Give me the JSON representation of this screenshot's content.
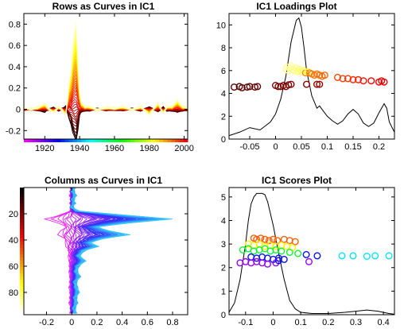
{
  "chart_data": [
    {
      "id": "rows-curves",
      "type": "line",
      "title": "Rows as Curves in IC1",
      "xlabel": "",
      "ylabel": "",
      "xlim": [
        1908,
        2002
      ],
      "ylim": [
        -0.28,
        0.9
      ],
      "x_ticks": [
        1920,
        1940,
        1960,
        1980,
        2000
      ],
      "y_ticks": [
        -0.2,
        0,
        0.2,
        0.4,
        0.6,
        0.8
      ],
      "colorbar": "below x-axis, rainbow (magenta to red) spanning the years",
      "colormap": "hot (dark red/black to yellow/white)",
      "n_curves": 45,
      "peak": {
        "x": 1938,
        "y": 0.85
      },
      "curve_shape": [
        [
          1908,
          0.02
        ],
        [
          1912,
          0.0
        ],
        [
          1916,
          0.02
        ],
        [
          1920,
          0.06
        ],
        [
          1922,
          0.01
        ],
        [
          1925,
          -0.04
        ],
        [
          1928,
          0.03
        ],
        [
          1930,
          -0.01
        ],
        [
          1932,
          -0.07
        ],
        [
          1934,
          0.28
        ],
        [
          1935,
          0.38
        ],
        [
          1936,
          0.62
        ],
        [
          1937,
          0.76
        ],
        [
          1938,
          0.85
        ],
        [
          1939,
          0.55
        ],
        [
          1940,
          0.18
        ],
        [
          1941,
          0.07
        ],
        [
          1943,
          0.03
        ],
        [
          1946,
          0.03
        ],
        [
          1950,
          -0.01
        ],
        [
          1955,
          0.02
        ],
        [
          1960,
          0.01
        ],
        [
          1965,
          0.03
        ],
        [
          1970,
          -0.01
        ],
        [
          1975,
          0.03
        ],
        [
          1980,
          -0.06
        ],
        [
          1985,
          0.07
        ],
        [
          1988,
          -0.05
        ],
        [
          1990,
          0.03
        ],
        [
          1993,
          0.03
        ],
        [
          1996,
          0.09
        ],
        [
          1999,
          0.03
        ],
        [
          2002,
          0.02
        ]
      ]
    },
    {
      "id": "ic1-loadings",
      "type": "scatter",
      "title": "IC1 Loadings Plot",
      "xlabel": "",
      "ylabel": "",
      "xlim": [
        -0.09,
        0.23
      ],
      "ylim": [
        0,
        11
      ],
      "x_ticks": [
        -0.05,
        0,
        0.05,
        0.1,
        0.15,
        0.2
      ],
      "y_ticks": [
        0,
        2,
        4,
        6,
        8,
        10
      ],
      "grid": false,
      "colormap": "hot",
      "density_curve": [
        [
          -0.09,
          0.3
        ],
        [
          -0.07,
          0.6
        ],
        [
          -0.05,
          1.0
        ],
        [
          -0.03,
          0.8
        ],
        [
          -0.01,
          1.5
        ],
        [
          0.0,
          2.2
        ],
        [
          0.01,
          3.5
        ],
        [
          0.02,
          5.5
        ],
        [
          0.03,
          8.5
        ],
        [
          0.04,
          10.4
        ],
        [
          0.045,
          10.6
        ],
        [
          0.05,
          9.8
        ],
        [
          0.055,
          8.0
        ],
        [
          0.06,
          6.0
        ],
        [
          0.07,
          3.8
        ],
        [
          0.08,
          2.7
        ],
        [
          0.085,
          2.9
        ],
        [
          0.09,
          2.6
        ],
        [
          0.1,
          2.0
        ],
        [
          0.11,
          1.6
        ],
        [
          0.12,
          1.3
        ],
        [
          0.13,
          1.6
        ],
        [
          0.14,
          2.2
        ],
        [
          0.15,
          2.6
        ],
        [
          0.16,
          2.2
        ],
        [
          0.17,
          1.4
        ],
        [
          0.18,
          1.1
        ],
        [
          0.19,
          1.4
        ],
        [
          0.2,
          2.3
        ],
        [
          0.21,
          3.1
        ],
        [
          0.215,
          2.7
        ],
        [
          0.22,
          1.5
        ],
        [
          0.23,
          0.6
        ]
      ],
      "points": [
        [
          -0.08,
          4.55
        ],
        [
          -0.07,
          4.6
        ],
        [
          -0.065,
          4.5
        ],
        [
          -0.055,
          4.55
        ],
        [
          -0.05,
          4.6
        ],
        [
          -0.04,
          4.55
        ],
        [
          -0.035,
          4.6
        ],
        [
          0.0,
          4.7
        ],
        [
          0.005,
          4.6
        ],
        [
          0.01,
          4.6
        ],
        [
          0.015,
          4.7
        ],
        [
          0.02,
          4.6
        ],
        [
          0.025,
          4.75
        ],
        [
          0.03,
          4.8
        ],
        [
          0.06,
          4.8
        ],
        [
          0.08,
          4.8
        ],
        [
          0.085,
          4.8
        ],
        [
          0.02,
          6.1
        ],
        [
          0.022,
          6.3
        ],
        [
          0.025,
          6.0
        ],
        [
          0.028,
          6.2
        ],
        [
          0.03,
          6.4
        ],
        [
          0.033,
          6.1
        ],
        [
          0.036,
          6.0
        ],
        [
          0.04,
          6.2
        ],
        [
          0.043,
          5.9
        ],
        [
          0.046,
          6.1
        ],
        [
          0.05,
          5.9
        ],
        [
          0.054,
          6.0
        ],
        [
          0.058,
          5.8
        ],
        [
          0.062,
          5.9
        ],
        [
          0.066,
          5.8
        ],
        [
          0.07,
          5.7
        ],
        [
          0.075,
          5.6
        ],
        [
          0.08,
          5.7
        ],
        [
          0.085,
          5.6
        ],
        [
          0.09,
          5.5
        ],
        [
          0.095,
          5.6
        ],
        [
          0.12,
          5.4
        ],
        [
          0.13,
          5.3
        ],
        [
          0.14,
          5.3
        ],
        [
          0.15,
          5.2
        ],
        [
          0.16,
          5.2
        ],
        [
          0.17,
          5.1
        ],
        [
          0.185,
          5.1
        ],
        [
          0.2,
          5.0
        ],
        [
          0.205,
          5.1
        ],
        [
          0.21,
          5.0
        ]
      ]
    },
    {
      "id": "columns-curves",
      "type": "line",
      "title": "Columns as Curves in IC1",
      "xlabel": "",
      "ylabel": "",
      "xlim": [
        -0.38,
        0.92
      ],
      "ylim": [
        97,
        0
      ],
      "x_ticks": [
        -0.2,
        0,
        0.2,
        0.4,
        0.6,
        0.8
      ],
      "y_ticks": [
        20,
        40,
        60,
        80
      ],
      "colorbar": "left of y-axis, hot colormap (black at top to white at bottom)",
      "colormap": "rainbow (magenta to light blue)",
      "n_curves": 46,
      "curve_shape": [
        [
          0.02,
          0
        ],
        [
          0.01,
          3
        ],
        [
          0.03,
          6
        ],
        [
          0.01,
          9
        ],
        [
          0.02,
          12
        ],
        [
          0.0,
          15
        ],
        [
          0.05,
          18
        ],
        [
          0.55,
          22
        ],
        [
          0.8,
          24
        ],
        [
          0.45,
          27
        ],
        [
          0.2,
          30
        ],
        [
          0.3,
          33
        ],
        [
          0.45,
          36
        ],
        [
          0.25,
          39
        ],
        [
          0.15,
          42
        ],
        [
          0.2,
          45
        ],
        [
          0.1,
          48
        ],
        [
          0.06,
          52
        ],
        [
          0.1,
          56
        ],
        [
          0.05,
          60
        ],
        [
          0.04,
          64
        ],
        [
          0.06,
          68
        ],
        [
          0.03,
          72
        ],
        [
          0.04,
          76
        ],
        [
          0.05,
          80
        ],
        [
          0.03,
          84
        ],
        [
          0.04,
          88
        ],
        [
          0.02,
          92
        ],
        [
          0.03,
          96
        ]
      ]
    },
    {
      "id": "ic1-scores",
      "type": "scatter",
      "title": "IC1 Scores Plot",
      "xlabel": "",
      "ylabel": "",
      "xlim": [
        -0.16,
        0.44
      ],
      "ylim": [
        0,
        5.4
      ],
      "x_ticks": [
        -0.1,
        0,
        0.1,
        0.2,
        0.3,
        0.4
      ],
      "y_ticks": [
        0,
        1,
        2,
        3,
        4,
        5
      ],
      "grid": false,
      "colormap": "rainbow",
      "density_curve": [
        [
          -0.16,
          0.1
        ],
        [
          -0.14,
          0.5
        ],
        [
          -0.12,
          1.5
        ],
        [
          -0.1,
          3.0
        ],
        [
          -0.09,
          4.0
        ],
        [
          -0.08,
          4.7
        ],
        [
          -0.07,
          5.0
        ],
        [
          -0.06,
          5.15
        ],
        [
          -0.04,
          5.15
        ],
        [
          -0.03,
          5.1
        ],
        [
          -0.02,
          4.8
        ],
        [
          0.0,
          3.8
        ],
        [
          0.02,
          2.6
        ],
        [
          0.04,
          1.5
        ],
        [
          0.06,
          0.6
        ],
        [
          0.08,
          0.25
        ],
        [
          0.1,
          0.1
        ],
        [
          0.14,
          0.05
        ],
        [
          0.2,
          0.05
        ],
        [
          0.26,
          0.1
        ],
        [
          0.3,
          0.15
        ],
        [
          0.34,
          0.2
        ],
        [
          0.38,
          0.15
        ],
        [
          0.42,
          0.05
        ],
        [
          0.44,
          0.02
        ]
      ],
      "points": [
        [
          -0.07,
          3.25
        ],
        [
          -0.06,
          3.2
        ],
        [
          -0.045,
          3.25
        ],
        [
          -0.03,
          3.2
        ],
        [
          -0.015,
          3.15
        ],
        [
          0.0,
          3.2
        ],
        [
          0.015,
          3.15
        ],
        [
          0.04,
          3.2
        ],
        [
          0.06,
          3.15
        ],
        [
          0.08,
          3.1
        ],
        [
          -0.09,
          3.0
        ],
        [
          -0.07,
          2.95
        ],
        [
          -0.05,
          3.0
        ],
        [
          -0.03,
          2.9
        ],
        [
          -0.01,
          2.95
        ],
        [
          0.01,
          2.9
        ],
        [
          0.03,
          2.95
        ],
        [
          0.05,
          2.9
        ],
        [
          0.07,
          2.85
        ],
        [
          -0.11,
          2.75
        ],
        [
          -0.09,
          2.8
        ],
        [
          -0.07,
          2.7
        ],
        [
          -0.05,
          2.75
        ],
        [
          -0.03,
          2.8
        ],
        [
          -0.01,
          2.7
        ],
        [
          0.01,
          2.75
        ],
        [
          0.03,
          2.7
        ],
        [
          0.06,
          2.65
        ],
        [
          0.09,
          2.6
        ],
        [
          0.12,
          2.55
        ],
        [
          0.16,
          2.5
        ],
        [
          0.25,
          2.5
        ],
        [
          0.29,
          2.5
        ],
        [
          0.34,
          2.48
        ],
        [
          0.37,
          2.5
        ],
        [
          0.42,
          2.5
        ],
        [
          -0.08,
          2.45
        ],
        [
          -0.06,
          2.4
        ],
        [
          -0.04,
          2.45
        ],
        [
          -0.02,
          2.4
        ],
        [
          0.0,
          2.35
        ],
        [
          0.02,
          2.4
        ],
        [
          0.04,
          2.35
        ],
        [
          0.13,
          2.25
        ],
        [
          -0.12,
          2.2
        ],
        [
          -0.1,
          2.25
        ],
        [
          -0.08,
          2.2
        ],
        [
          -0.06,
          2.25
        ],
        [
          -0.04,
          2.2
        ],
        [
          -0.02,
          2.15
        ],
        [
          0.01,
          2.2
        ],
        [
          0.02,
          2.3
        ]
      ]
    }
  ]
}
